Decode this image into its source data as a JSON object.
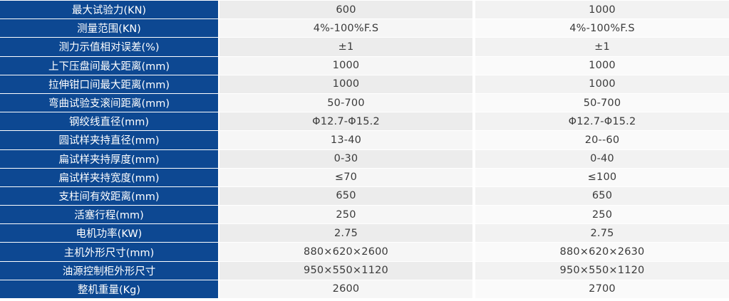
{
  "spec_table": {
    "rows": [
      {
        "label": "最大试验力(KN)",
        "model_a": "600",
        "model_b": "1000"
      },
      {
        "label": "测量范围(KN)",
        "model_a": "4%-100%F.S",
        "model_b": "4%-100%F.S"
      },
      {
        "label": "测力示值相对误差(%)",
        "model_a": "±1",
        "model_b": "±1"
      },
      {
        "label": "上下压盘间最大距离(mm)",
        "model_a": "1000",
        "model_b": "1000"
      },
      {
        "label": "拉伸钳口间最大距离(mm)",
        "model_a": "1000",
        "model_b": "1000"
      },
      {
        "label": "弯曲试验支滚间距离(mm)",
        "model_a": "50-700",
        "model_b": "50-700"
      },
      {
        "label": "钢绞线直径(mm)",
        "model_a": "Φ12.7-Φ15.2",
        "model_b": "Φ12.7-Φ15.2"
      },
      {
        "label": "圆试样夹持直径(mm)",
        "model_a": "13-40",
        "model_b": "20--60"
      },
      {
        "label": "扁试样夹持厚度(mm)",
        "model_a": "0-30",
        "model_b": "0-40"
      },
      {
        "label": "扁试样夹持宽度(mm)",
        "model_a": "≤70",
        "model_b": "≤100"
      },
      {
        "label": "支柱间有效距离(mm)",
        "model_a": "650",
        "model_b": "650"
      },
      {
        "label": "活塞行程(mm)",
        "model_a": "250",
        "model_b": "250"
      },
      {
        "label": "电机功率(KW)",
        "model_a": "2.75",
        "model_b": "2.75"
      },
      {
        "label": "主机外形尺寸(mm)",
        "model_a": "880×620×2600",
        "model_b": "880×620×2630"
      },
      {
        "label": "油源控制柜外形尺寸",
        "model_a": "950×550×1120",
        "model_b": "950×550×1120"
      },
      {
        "label": "整机重量(Kg)",
        "model_a": "2600",
        "model_b": "2700"
      }
    ]
  },
  "colors": {
    "label_background": "#0d4892",
    "label_text": "#ffffff",
    "value_text": "#3a3a3a"
  }
}
